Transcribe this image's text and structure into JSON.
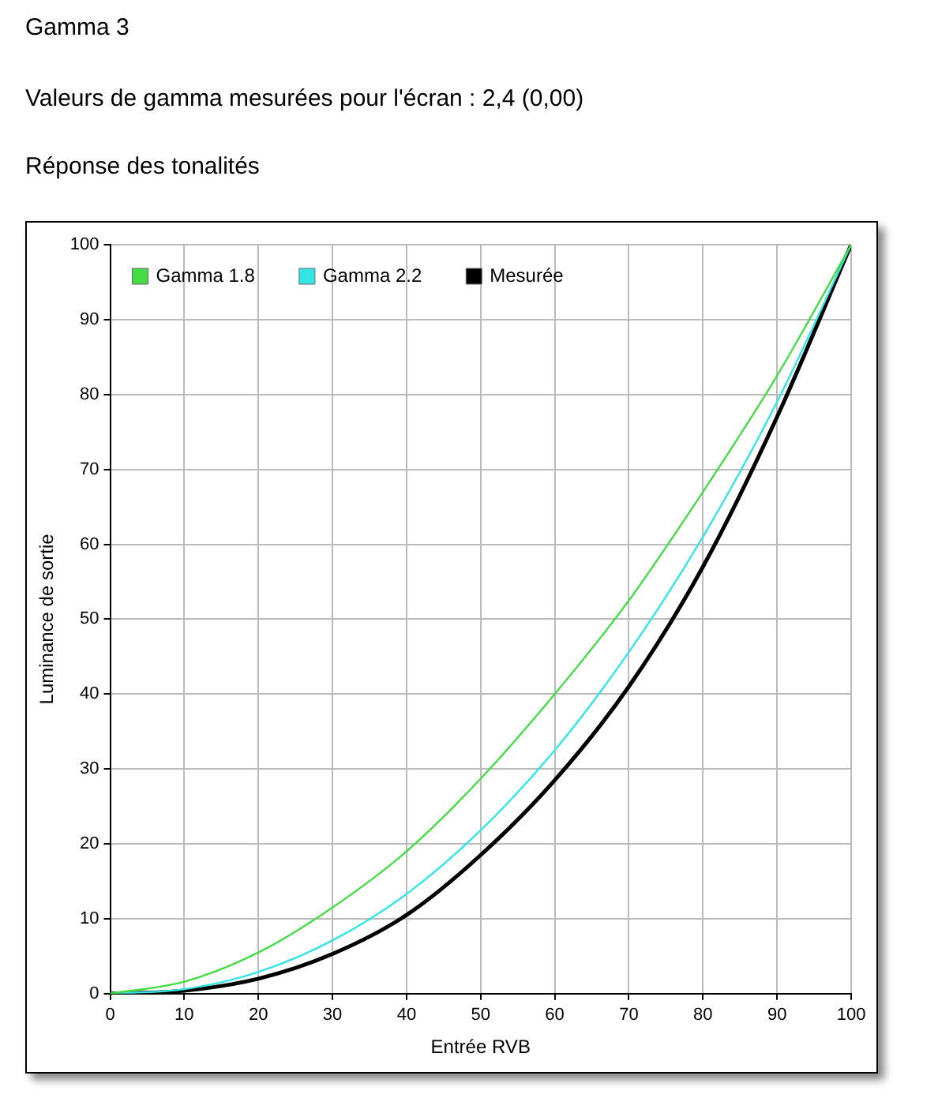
{
  "chart_data": {
    "type": "line",
    "title": "Gamma 3",
    "subtitle": "Valeurs de gamma mesurées pour l'écran : 2,4 (0,00)",
    "annotations": [
      "Réponse des tonalités"
    ],
    "xlabel": "Entrée RVB",
    "ylabel": "Luminance de sortie",
    "x": [
      0,
      10,
      20,
      30,
      40,
      50,
      60,
      70,
      80,
      90,
      100
    ],
    "series": [
      {
        "name": "Gamma 1.8",
        "color": "#44dd44",
        "values": [
          0,
          1.6,
          5.5,
          11.5,
          19,
          28.7,
          40,
          52.5,
          67,
          82.5,
          100
        ]
      },
      {
        "name": "Gamma 2.2",
        "color": "#33e6e6",
        "values": [
          0,
          0.6,
          2.9,
          7.1,
          13.3,
          21.8,
          32.5,
          45.6,
          61,
          79,
          100
        ]
      },
      {
        "name": "Mesurée",
        "color": "#000000",
        "values": [
          0,
          0.4,
          2,
          5.3,
          10.5,
          18.5,
          28.5,
          41,
          57,
          77,
          100
        ]
      }
    ],
    "xlim": [
      0,
      100
    ],
    "ylim": [
      0,
      100
    ],
    "xticks": [
      0,
      10,
      20,
      30,
      40,
      50,
      60,
      70,
      80,
      90,
      100
    ],
    "yticks": [
      0,
      10,
      20,
      30,
      40,
      50,
      60,
      70,
      80,
      90,
      100
    ],
    "grid": true,
    "legend": "top left",
    "marker": "none",
    "line_style": "solid"
  }
}
